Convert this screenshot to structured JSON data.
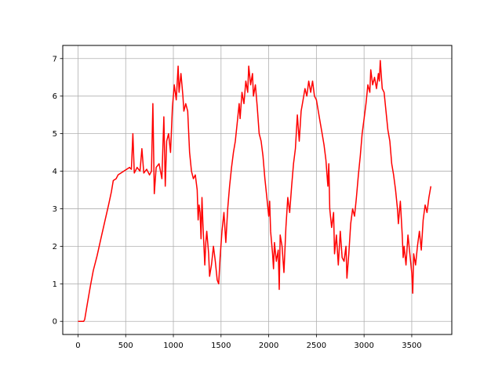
{
  "chart_data": {
    "type": "line",
    "title": "",
    "xlabel": "",
    "ylabel": "",
    "xlim": [
      -160,
      3920
    ],
    "ylim": [
      -0.35,
      7.35
    ],
    "x_ticks": [
      0,
      500,
      1000,
      1500,
      2000,
      2500,
      3000,
      3500
    ],
    "x_tick_labels": [
      "0",
      "500",
      "1000",
      "1500",
      "2000",
      "2500",
      "3000",
      "3500"
    ],
    "y_ticks": [
      0,
      1,
      2,
      3,
      4,
      5,
      6,
      7
    ],
    "y_tick_labels": [
      "0",
      "1",
      "2",
      "3",
      "4",
      "5",
      "6",
      "7"
    ],
    "grid": true,
    "legend": "none",
    "series": [
      {
        "color": "#ff0000",
        "points": [
          [
            0,
            0
          ],
          [
            60,
            0
          ],
          [
            70,
            0.05
          ],
          [
            100,
            0.5
          ],
          [
            130,
            0.95
          ],
          [
            160,
            1.35
          ],
          [
            200,
            1.75
          ],
          [
            240,
            2.2
          ],
          [
            280,
            2.65
          ],
          [
            320,
            3.1
          ],
          [
            350,
            3.45
          ],
          [
            370,
            3.75
          ],
          [
            400,
            3.8
          ],
          [
            420,
            3.9
          ],
          [
            450,
            3.95
          ],
          [
            480,
            4.0
          ],
          [
            510,
            4.05
          ],
          [
            540,
            4.1
          ],
          [
            560,
            4.05
          ],
          [
            575,
            5.0
          ],
          [
            590,
            3.95
          ],
          [
            620,
            4.1
          ],
          [
            650,
            4.0
          ],
          [
            670,
            4.6
          ],
          [
            690,
            3.95
          ],
          [
            720,
            4.05
          ],
          [
            750,
            3.9
          ],
          [
            770,
            4.0
          ],
          [
            785,
            5.8
          ],
          [
            800,
            3.4
          ],
          [
            820,
            4.1
          ],
          [
            850,
            4.2
          ],
          [
            880,
            3.8
          ],
          [
            900,
            5.45
          ],
          [
            915,
            3.6
          ],
          [
            930,
            4.8
          ],
          [
            950,
            5.0
          ],
          [
            970,
            4.5
          ],
          [
            990,
            5.7
          ],
          [
            1010,
            6.3
          ],
          [
            1030,
            5.9
          ],
          [
            1050,
            6.8
          ],
          [
            1060,
            6.1
          ],
          [
            1080,
            6.6
          ],
          [
            1100,
            6.0
          ],
          [
            1110,
            5.6
          ],
          [
            1130,
            5.8
          ],
          [
            1150,
            5.6
          ],
          [
            1170,
            4.5
          ],
          [
            1190,
            4.0
          ],
          [
            1210,
            3.8
          ],
          [
            1230,
            3.9
          ],
          [
            1250,
            3.5
          ],
          [
            1260,
            2.7
          ],
          [
            1270,
            3.1
          ],
          [
            1280,
            2.9
          ],
          [
            1290,
            2.2
          ],
          [
            1300,
            3.3
          ],
          [
            1310,
            2.6
          ],
          [
            1330,
            1.5
          ],
          [
            1340,
            2.1
          ],
          [
            1350,
            2.4
          ],
          [
            1370,
            1.8
          ],
          [
            1380,
            1.2
          ],
          [
            1400,
            1.5
          ],
          [
            1420,
            2.0
          ],
          [
            1440,
            1.6
          ],
          [
            1460,
            1.1
          ],
          [
            1475,
            1.0
          ],
          [
            1490,
            1.7
          ],
          [
            1510,
            2.4
          ],
          [
            1530,
            2.9
          ],
          [
            1550,
            2.1
          ],
          [
            1570,
            3.0
          ],
          [
            1590,
            3.6
          ],
          [
            1610,
            4.1
          ],
          [
            1630,
            4.5
          ],
          [
            1650,
            4.8
          ],
          [
            1670,
            5.3
          ],
          [
            1690,
            5.8
          ],
          [
            1700,
            5.4
          ],
          [
            1720,
            6.1
          ],
          [
            1740,
            5.8
          ],
          [
            1760,
            6.4
          ],
          [
            1780,
            6.1
          ],
          [
            1790,
            6.8
          ],
          [
            1810,
            6.3
          ],
          [
            1830,
            6.6
          ],
          [
            1840,
            6.0
          ],
          [
            1860,
            6.3
          ],
          [
            1880,
            5.7
          ],
          [
            1900,
            5.0
          ],
          [
            1920,
            4.8
          ],
          [
            1940,
            4.4
          ],
          [
            1960,
            3.8
          ],
          [
            1980,
            3.3
          ],
          [
            2000,
            2.8
          ],
          [
            2010,
            3.2
          ],
          [
            2020,
            2.4
          ],
          [
            2040,
            1.8
          ],
          [
            2050,
            1.4
          ],
          [
            2060,
            2.1
          ],
          [
            2080,
            1.6
          ],
          [
            2100,
            1.9
          ],
          [
            2110,
            0.85
          ],
          [
            2120,
            2.3
          ],
          [
            2140,
            2.0
          ],
          [
            2160,
            1.3
          ],
          [
            2180,
            2.5
          ],
          [
            2200,
            3.3
          ],
          [
            2220,
            2.9
          ],
          [
            2240,
            3.6
          ],
          [
            2260,
            4.2
          ],
          [
            2280,
            4.6
          ],
          [
            2300,
            5.5
          ],
          [
            2320,
            4.8
          ],
          [
            2340,
            5.6
          ],
          [
            2360,
            5.9
          ],
          [
            2380,
            6.2
          ],
          [
            2400,
            6.0
          ],
          [
            2420,
            6.4
          ],
          [
            2440,
            6.1
          ],
          [
            2460,
            6.4
          ],
          [
            2480,
            6.0
          ],
          [
            2500,
            5.9
          ],
          [
            2520,
            5.6
          ],
          [
            2540,
            5.3
          ],
          [
            2560,
            5.0
          ],
          [
            2580,
            4.7
          ],
          [
            2600,
            4.3
          ],
          [
            2620,
            3.6
          ],
          [
            2630,
            4.2
          ],
          [
            2640,
            3.0
          ],
          [
            2660,
            2.5
          ],
          [
            2680,
            2.9
          ],
          [
            2690,
            1.8
          ],
          [
            2710,
            2.3
          ],
          [
            2730,
            1.5
          ],
          [
            2750,
            2.4
          ],
          [
            2770,
            1.7
          ],
          [
            2790,
            1.6
          ],
          [
            2810,
            2.0
          ],
          [
            2820,
            1.15
          ],
          [
            2840,
            1.8
          ],
          [
            2860,
            2.6
          ],
          [
            2880,
            3.0
          ],
          [
            2900,
            2.8
          ],
          [
            2920,
            3.3
          ],
          [
            2940,
            3.9
          ],
          [
            2960,
            4.4
          ],
          [
            2980,
            5.0
          ],
          [
            3000,
            5.4
          ],
          [
            3020,
            5.8
          ],
          [
            3040,
            6.3
          ],
          [
            3060,
            6.1
          ],
          [
            3070,
            6.7
          ],
          [
            3090,
            6.3
          ],
          [
            3110,
            6.5
          ],
          [
            3130,
            6.2
          ],
          [
            3150,
            6.6
          ],
          [
            3160,
            6.4
          ],
          [
            3170,
            6.95
          ],
          [
            3190,
            6.2
          ],
          [
            3210,
            6.1
          ],
          [
            3230,
            5.6
          ],
          [
            3250,
            5.1
          ],
          [
            3270,
            4.8
          ],
          [
            3290,
            4.2
          ],
          [
            3310,
            3.9
          ],
          [
            3330,
            3.5
          ],
          [
            3350,
            3.0
          ],
          [
            3360,
            2.6
          ],
          [
            3380,
            3.2
          ],
          [
            3400,
            2.3
          ],
          [
            3410,
            1.7
          ],
          [
            3420,
            2.0
          ],
          [
            3440,
            1.5
          ],
          [
            3460,
            2.3
          ],
          [
            3480,
            1.8
          ],
          [
            3500,
            1.3
          ],
          [
            3510,
            0.75
          ],
          [
            3520,
            1.8
          ],
          [
            3540,
            1.5
          ],
          [
            3560,
            2.0
          ],
          [
            3580,
            2.4
          ],
          [
            3600,
            1.9
          ],
          [
            3620,
            2.7
          ],
          [
            3640,
            3.1
          ],
          [
            3660,
            2.9
          ],
          [
            3680,
            3.3
          ],
          [
            3700,
            3.6
          ]
        ]
      }
    ]
  }
}
